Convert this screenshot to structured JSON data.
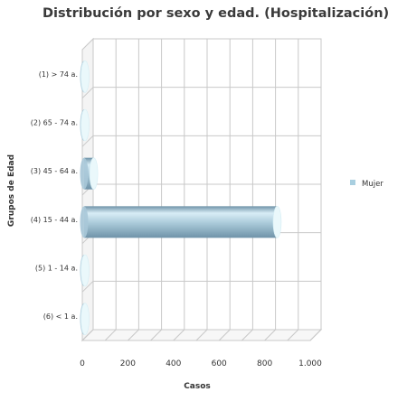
{
  "chart_data": {
    "type": "bar",
    "orientation": "horizontal",
    "style": "3d-cylinder",
    "title": "Distribución por sexo y edad. (Hospitalización)",
    "xlabel": "Casos",
    "ylabel": "Grupos de Edad",
    "categories": [
      "(1) > 74 a.",
      "(2) 65 - 74 a.",
      "(3) 45 - 64 a.",
      "(4) 15 - 44 a.",
      "(5) 1 - 14 a.",
      "(6) < 1 a."
    ],
    "series": [
      {
        "name": "Mujer",
        "values": [
          2,
          5,
          50,
          855,
          2,
          0
        ]
      }
    ],
    "xlim": [
      0,
      1000
    ],
    "xticks": [
      0,
      200,
      400,
      600,
      800,
      1000
    ],
    "xtick_labels": [
      "0",
      "200",
      "400",
      "600",
      "800",
      "1.000"
    ],
    "grid": true,
    "legend_position": "right",
    "colors": {
      "bar_light": "#d8edf6",
      "bar_mid": "#a8c8d8",
      "bar_dark": "#6f93a8",
      "bar_cap": "#eaf8fb",
      "grid": "#c8c8c8",
      "legend_swatch": "#a9cfe0"
    }
  }
}
